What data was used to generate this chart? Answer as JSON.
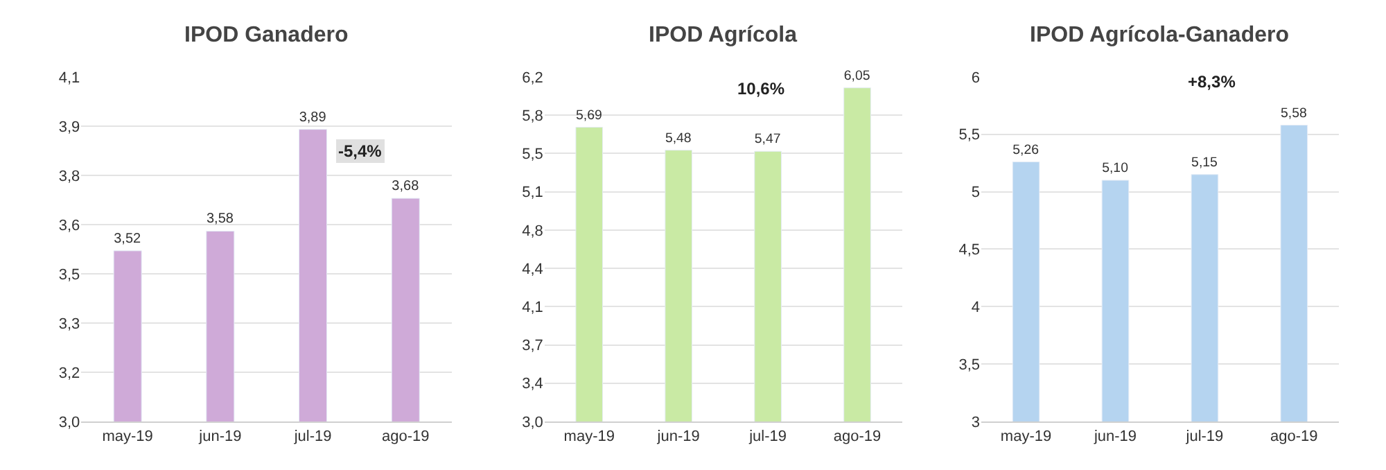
{
  "chart_data": [
    {
      "type": "bar",
      "title": "IPOD Ganadero",
      "categories": [
        "may-19",
        "jun-19",
        "jul-19",
        "ago-19"
      ],
      "values": [
        3.52,
        3.58,
        3.89,
        3.68
      ],
      "value_labels": [
        "3,52",
        "3,58",
        "3,89",
        "3,68"
      ],
      "color": "#cfaad8",
      "ylim": [
        3.0,
        4.05
      ],
      "yticks": [
        {
          "value": 3.0,
          "label": "3,0"
        },
        {
          "value": 3.15,
          "label": "3,2"
        },
        {
          "value": 3.3,
          "label": "3,3"
        },
        {
          "value": 3.45,
          "label": "3,5"
        },
        {
          "value": 3.6,
          "label": "3,6"
        },
        {
          "value": 3.75,
          "label": "3,8"
        },
        {
          "value": 3.9,
          "label": "3,9"
        },
        {
          "value": 4.05,
          "label": "4,1"
        }
      ],
      "grid": "y",
      "annotations": [
        "-5,4%"
      ]
    },
    {
      "type": "bar",
      "title": "IPOD Agrícola",
      "categories": [
        "may-19",
        "jun-19",
        "jul-19",
        "ago-19"
      ],
      "values": [
        5.69,
        5.48,
        5.47,
        6.05
      ],
      "value_labels": [
        "5,69",
        "5,48",
        "5,47",
        "6,05"
      ],
      "color": "#c9eaa4",
      "ylim": [
        3.0,
        6.15
      ],
      "yticks": [
        {
          "value": 3.0,
          "label": "3,0"
        },
        {
          "value": 3.35,
          "label": "3,4"
        },
        {
          "value": 3.7,
          "label": "3,7"
        },
        {
          "value": 4.05,
          "label": "4,1"
        },
        {
          "value": 4.4,
          "label": "4,4"
        },
        {
          "value": 4.75,
          "label": "4,8"
        },
        {
          "value": 5.1,
          "label": "5,1"
        },
        {
          "value": 5.45,
          "label": "5,5"
        },
        {
          "value": 5.8,
          "label": "5,8"
        },
        {
          "value": 6.15,
          "label": "6,2"
        }
      ],
      "grid": "y",
      "annotations": [
        "10,6%"
      ]
    },
    {
      "type": "bar",
      "title": "IPOD Agrícola-Ganadero",
      "categories": [
        "may-19",
        "jun-19",
        "jul-19",
        "ago-19"
      ],
      "values": [
        5.26,
        5.1,
        5.15,
        5.58
      ],
      "value_labels": [
        "5,26",
        "5,10",
        "5,15",
        "5,58"
      ],
      "color": "#b5d4f0",
      "ylim": [
        3,
        6
      ],
      "yticks": [
        3,
        {
          "value": 3.5,
          "label": "3,5"
        },
        4,
        {
          "value": 4.5,
          "label": "4,5"
        },
        5,
        {
          "value": 5.5,
          "label": "5,5"
        },
        6
      ],
      "grid": "y",
      "annotations": [
        "+8,3%"
      ]
    }
  ]
}
